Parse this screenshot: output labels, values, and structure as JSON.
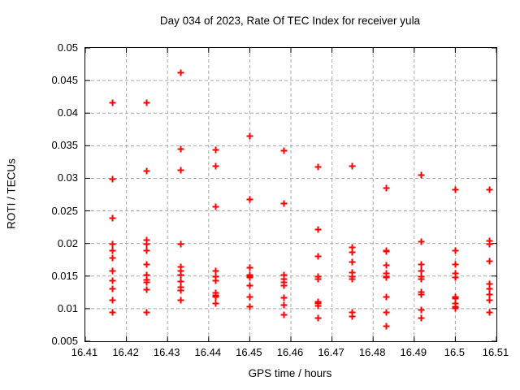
{
  "accent_colors": {
    "marker": "#ff0000",
    "grid": "#a8a8a8",
    "border": "#000000",
    "background": "#ffffff",
    "text": "#000000"
  },
  "chart_data": {
    "type": "scatter",
    "title": "Day 034 of 2023, Rate Of TEC Index for receiver yula",
    "xlabel": "GPS time / hours",
    "ylabel": "ROTI / TECUs",
    "xlim": [
      16.41,
      16.51
    ],
    "ylim": [
      0.005,
      0.05
    ],
    "grid": true,
    "legend": "none",
    "marker": {
      "shape": "plus",
      "color": "#ff0000",
      "size": 8,
      "stroke_width": 2
    },
    "xticks": {
      "values": [
        16.41,
        16.42,
        16.43,
        16.44,
        16.45,
        16.46,
        16.47,
        16.48,
        16.49,
        16.5,
        16.51
      ],
      "labels": [
        "16.41",
        "16.42",
        "16.43",
        "16.44",
        "16.45",
        "16.46",
        "16.47",
        "16.48",
        "16.49",
        "16.5",
        "16.51"
      ]
    },
    "yticks": {
      "values": [
        0.005,
        0.01,
        0.015,
        0.02,
        0.025,
        0.03,
        0.035,
        0.04,
        0.045,
        0.05
      ],
      "labels": [
        "0.005",
        "0.01",
        "0.015",
        "0.02",
        "0.025",
        "0.03",
        "0.035",
        "0.04",
        "0.045",
        "0.05"
      ]
    },
    "series": [
      {
        "name": "ROTI",
        "points": [
          [
            16.4166,
            0.0417
          ],
          [
            16.4166,
            0.0299
          ],
          [
            16.4166,
            0.0239
          ],
          [
            16.4166,
            0.02
          ],
          [
            16.4166,
            0.019
          ],
          [
            16.4166,
            0.0179
          ],
          [
            16.4166,
            0.0158
          ],
          [
            16.4166,
            0.0143
          ],
          [
            16.4166,
            0.0131
          ],
          [
            16.4166,
            0.0113
          ],
          [
            16.4166,
            0.0095
          ],
          [
            16.4249,
            0.0417
          ],
          [
            16.4249,
            0.0312
          ],
          [
            16.4249,
            0.0206
          ],
          [
            16.4249,
            0.0199
          ],
          [
            16.4249,
            0.0189
          ],
          [
            16.4249,
            0.0169
          ],
          [
            16.4249,
            0.0152
          ],
          [
            16.4249,
            0.0145
          ],
          [
            16.4249,
            0.0141
          ],
          [
            16.4249,
            0.013
          ],
          [
            16.4249,
            0.0095
          ],
          [
            16.4332,
            0.0462
          ],
          [
            16.4332,
            0.0346
          ],
          [
            16.4332,
            0.0313
          ],
          [
            16.4332,
            0.02
          ],
          [
            16.4332,
            0.0165
          ],
          [
            16.4332,
            0.0158
          ],
          [
            16.4332,
            0.0152
          ],
          [
            16.4332,
            0.0142
          ],
          [
            16.4332,
            0.0133
          ],
          [
            16.4332,
            0.0129
          ],
          [
            16.4332,
            0.0113
          ],
          [
            16.4416,
            0.0344
          ],
          [
            16.4416,
            0.0319
          ],
          [
            16.4416,
            0.0257
          ],
          [
            16.4416,
            0.0159
          ],
          [
            16.4416,
            0.015
          ],
          [
            16.4416,
            0.0144
          ],
          [
            16.4416,
            0.0125
          ],
          [
            16.4416,
            0.0121
          ],
          [
            16.4416,
            0.0118
          ],
          [
            16.4416,
            0.0109
          ],
          [
            16.4499,
            0.0365
          ],
          [
            16.4499,
            0.0268
          ],
          [
            16.4499,
            0.0164
          ],
          [
            16.4499,
            0.0152
          ],
          [
            16.4499,
            0.015
          ],
          [
            16.4499,
            0.0148
          ],
          [
            16.4499,
            0.0136
          ],
          [
            16.4499,
            0.0119
          ],
          [
            16.4499,
            0.0104
          ],
          [
            16.4582,
            0.0343
          ],
          [
            16.4582,
            0.0262
          ],
          [
            16.4582,
            0.0152
          ],
          [
            16.4582,
            0.0146
          ],
          [
            16.4582,
            0.0141
          ],
          [
            16.4582,
            0.0136
          ],
          [
            16.4582,
            0.0117
          ],
          [
            16.4582,
            0.0106
          ],
          [
            16.4582,
            0.0091
          ],
          [
            16.4666,
            0.0318
          ],
          [
            16.4666,
            0.0222
          ],
          [
            16.4666,
            0.0181
          ],
          [
            16.4666,
            0.015
          ],
          [
            16.4666,
            0.0146
          ],
          [
            16.4666,
            0.0111
          ],
          [
            16.4666,
            0.0108
          ],
          [
            16.4666,
            0.0105
          ],
          [
            16.4666,
            0.0086
          ],
          [
            16.4749,
            0.0319
          ],
          [
            16.4749,
            0.0195
          ],
          [
            16.4749,
            0.0187
          ],
          [
            16.4749,
            0.0172
          ],
          [
            16.4749,
            0.0156
          ],
          [
            16.4749,
            0.015
          ],
          [
            16.4749,
            0.0146
          ],
          [
            16.4749,
            0.0095
          ],
          [
            16.4749,
            0.0089
          ],
          [
            16.4832,
            0.0286
          ],
          [
            16.4832,
            0.019
          ],
          [
            16.4832,
            0.0188
          ],
          [
            16.4832,
            0.0167
          ],
          [
            16.4832,
            0.0155
          ],
          [
            16.4832,
            0.015
          ],
          [
            16.4832,
            0.0148
          ],
          [
            16.4832,
            0.0119
          ],
          [
            16.4832,
            0.0095
          ],
          [
            16.4832,
            0.0074
          ],
          [
            16.4916,
            0.0305
          ],
          [
            16.4916,
            0.0203
          ],
          [
            16.4916,
            0.0169
          ],
          [
            16.4916,
            0.0158
          ],
          [
            16.4916,
            0.015
          ],
          [
            16.4916,
            0.0146
          ],
          [
            16.4916,
            0.0126
          ],
          [
            16.4916,
            0.0122
          ],
          [
            16.4916,
            0.0099
          ],
          [
            16.4916,
            0.0086
          ],
          [
            16.4999,
            0.0283
          ],
          [
            16.4999,
            0.0189
          ],
          [
            16.4999,
            0.0169
          ],
          [
            16.4999,
            0.0155
          ],
          [
            16.4999,
            0.0149
          ],
          [
            16.4999,
            0.0119
          ],
          [
            16.4999,
            0.0116
          ],
          [
            16.4999,
            0.0108
          ],
          [
            16.4999,
            0.0104
          ],
          [
            16.4999,
            0.0101
          ],
          [
            16.5082,
            0.0283
          ],
          [
            16.5082,
            0.0204
          ],
          [
            16.5082,
            0.0199
          ],
          [
            16.5082,
            0.0174
          ],
          [
            16.5082,
            0.0139
          ],
          [
            16.5082,
            0.0131
          ],
          [
            16.5082,
            0.0122
          ],
          [
            16.5082,
            0.0113
          ],
          [
            16.5082,
            0.0095
          ]
        ]
      }
    ]
  }
}
